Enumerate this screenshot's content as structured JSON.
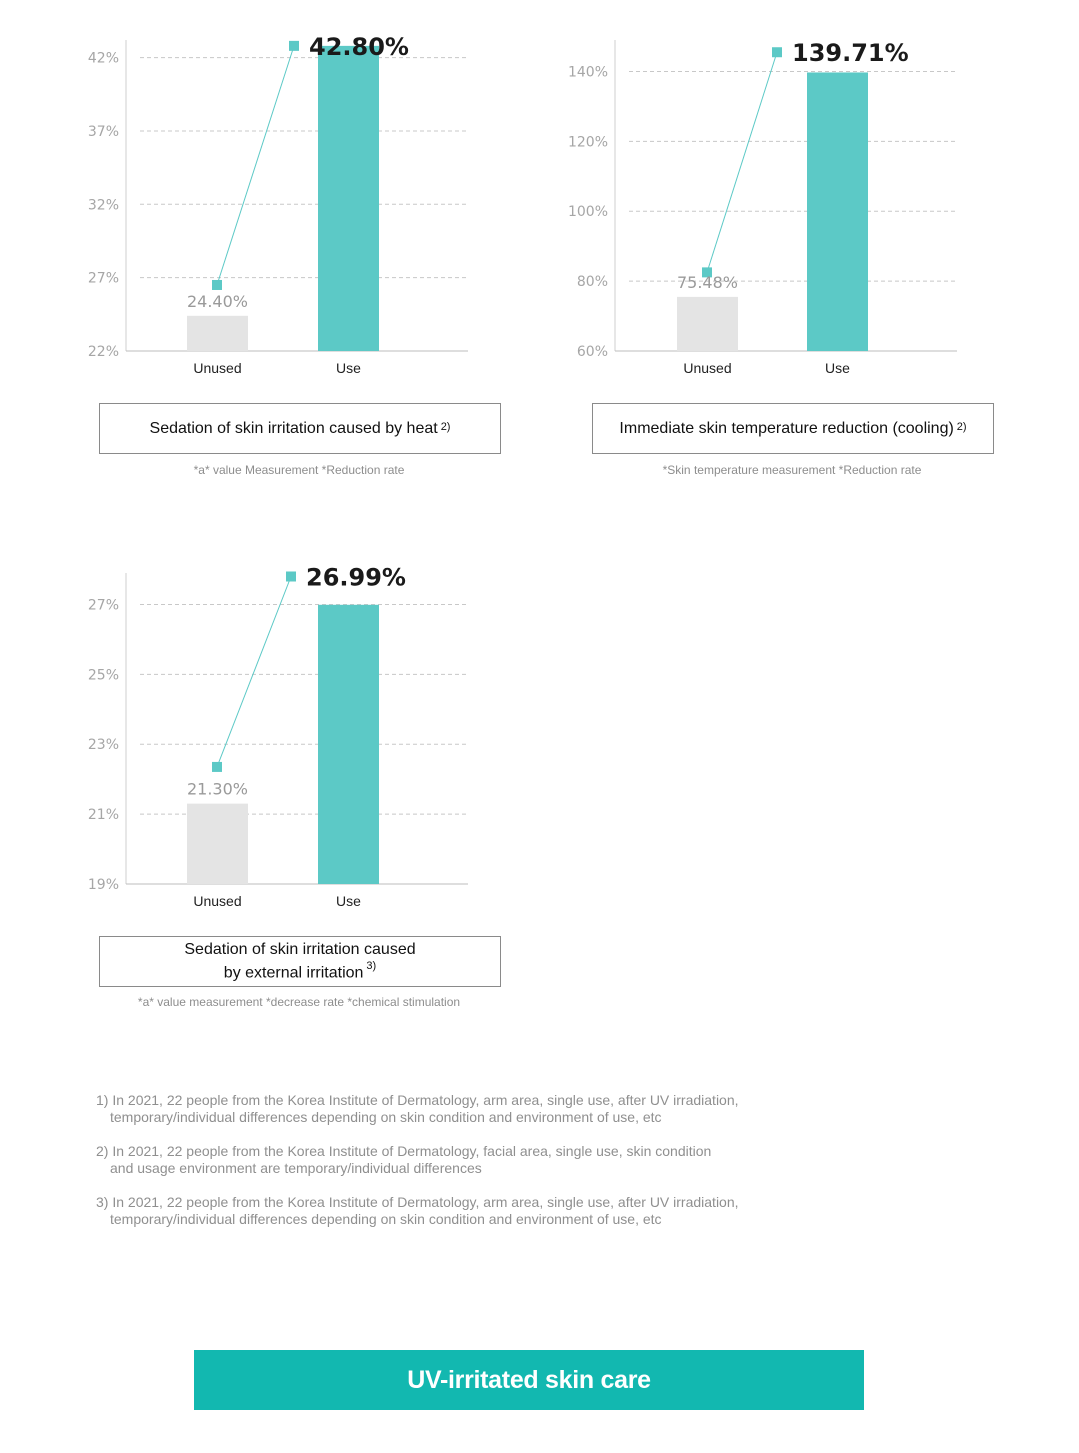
{
  "chart_data": [
    {
      "type": "bar",
      "categories": [
        "Unused",
        "Use"
      ],
      "values": [
        24.4,
        42.8
      ],
      "value_labels": [
        "24.40%",
        "42.80%"
      ],
      "yticks": [
        "22%",
        "27%",
        "32%",
        "37%",
        "42%"
      ],
      "ytick_values": [
        22,
        27,
        32,
        37,
        42
      ],
      "ylim": [
        22,
        43.2
      ],
      "marker_values": [
        26.5,
        42.8
      ],
      "title": "Sedation of skin irritation caused by heat",
      "title_ref": "2)",
      "note": "*a* value Measurement *Reduction rate",
      "colors": {
        "unused": "#e4e4e4",
        "use": "#5cc9c6",
        "marker": "#5cc9c6"
      },
      "grid": true
    },
    {
      "type": "bar",
      "categories": [
        "Unused",
        "Use"
      ],
      "values": [
        75.48,
        139.71
      ],
      "value_labels": [
        "75.48%",
        "139.71%"
      ],
      "yticks": [
        "60%",
        "80%",
        "100%",
        "120%",
        "140%"
      ],
      "ytick_values": [
        60,
        80,
        100,
        120,
        140
      ],
      "ylim": [
        60,
        149
      ],
      "marker_values": [
        82.5,
        145.5
      ],
      "title": "Immediate skin temperature reduction (cooling)",
      "title_ref": "2)",
      "note": "*Skin temperature measurement *Reduction rate",
      "colors": {
        "unused": "#e4e4e4",
        "use": "#5cc9c6",
        "marker": "#5cc9c6"
      },
      "grid": true
    },
    {
      "type": "bar",
      "categories": [
        "Unused",
        "Use"
      ],
      "values": [
        21.3,
        26.99
      ],
      "value_labels": [
        "21.30%",
        "26.99%"
      ],
      "yticks": [
        "19%",
        "21%",
        "23%",
        "25%",
        "27%"
      ],
      "ytick_values": [
        19,
        21,
        23,
        25,
        27
      ],
      "ylim": [
        19,
        27.9
      ],
      "marker_values": [
        22.35,
        27.8
      ],
      "title_line1": "Sedation of skin irritation caused",
      "title_line2": "by external irritation",
      "title_ref": "3)",
      "note": "*a* value measurement *decrease rate *chemical stimulation",
      "colors": {
        "unused": "#e4e4e4",
        "use": "#5cc9c6",
        "marker": "#5cc9c6"
      },
      "grid": true
    }
  ],
  "footnotes": [
    {
      "line1": "1) In 2021, 22 people from the Korea Institute of Dermatology, arm area, single use, after UV irradiation,",
      "line2": "temporary/individual differences depending on skin condition and environment of use, etc"
    },
    {
      "line1": "2) In 2021, 22 people from the Korea Institute of Dermatology, facial area, single use, skin condition",
      "line2": "and usage environment are temporary/individual differences"
    },
    {
      "line1": "3) In 2021, 22 people from the Korea Institute of Dermatology, arm area, single use, after UV irradiation,",
      "line2": "temporary/individual differences depending on skin condition and environment of use, etc"
    }
  ],
  "banner": {
    "label": "UV-irritated skin care",
    "color": "#12b8b0"
  }
}
